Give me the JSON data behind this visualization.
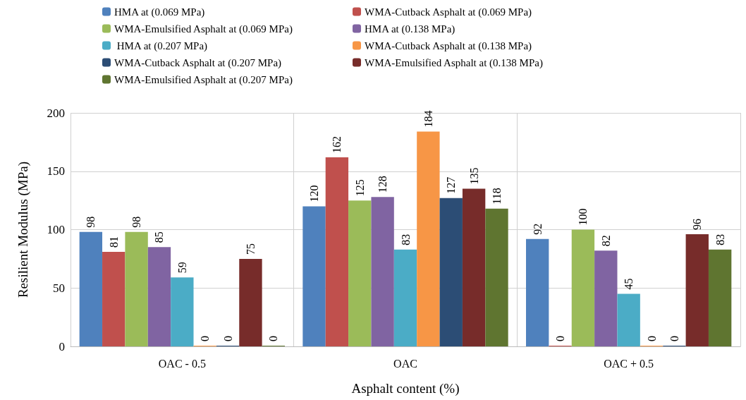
{
  "chart_data": {
    "type": "bar",
    "xlabel": "Asphalt content (%)",
    "ylabel": "Resilient Modulus (MPa)",
    "categories": [
      "OAC - 0.5",
      "OAC",
      "OAC + 0.5"
    ],
    "series": [
      {
        "name": "HMA at (0.069 MPa)",
        "color": "#4f81bd",
        "values": [
          98,
          120,
          92
        ]
      },
      {
        "name": "WMA-Cutback Asphalt at (0.069 MPa)",
        "color": "#c0504d",
        "values": [
          81,
          162,
          0
        ]
      },
      {
        "name": "WMA-Emulsified Asphalt at (0.069 MPa)",
        "color": "#9bbb59",
        "values": [
          98,
          125,
          100
        ]
      },
      {
        "name": "HMA at (0.138 MPa)",
        "color": "#8064a2",
        "values": [
          85,
          128,
          82
        ]
      },
      {
        "name": " HMA at (0.207 MPa)",
        "color": "#4bacc6",
        "values": [
          59,
          83,
          45
        ]
      },
      {
        "name": "WMA-Cutback Asphalt at (0.138 MPa)",
        "color": "#f79646",
        "values": [
          0,
          184,
          0
        ]
      },
      {
        "name": "WMA-Cutback Asphalt at (0.207 MPa)",
        "color": "#2c4d75",
        "values": [
          0,
          127,
          0
        ]
      },
      {
        "name": "WMA-Emulsified Asphalt at (0.138 MPa)",
        "color": "#772c2a",
        "values": [
          75,
          135,
          96
        ]
      },
      {
        "name": "WMA-Emulsified Asphalt at (0.207 MPa)",
        "color": "#5f7530",
        "values": [
          0,
          118,
          83
        ]
      }
    ],
    "ylim": [
      0,
      200
    ],
    "yticks": [
      0,
      50,
      100,
      150,
      200
    ],
    "grid": true,
    "legend": "top",
    "data_labels": true
  }
}
